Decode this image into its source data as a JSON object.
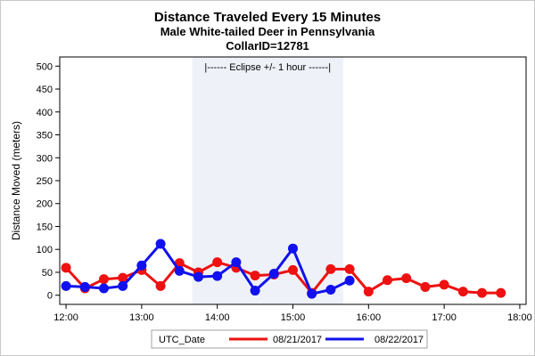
{
  "chart_data": {
    "type": "line",
    "title": "Distance Traveled Every 15 Minutes",
    "subtitle": "Male White-tailed Deer in Pennsylvania",
    "subtitle2": "CollarID=12781",
    "xlabel": "",
    "ylabel": "Distance Moved (meters)",
    "xlim": [
      "11:55",
      "18:05"
    ],
    "ylim": [
      -20,
      520
    ],
    "x_ticks": [
      "12:00",
      "13:00",
      "14:00",
      "15:00",
      "16:00",
      "17:00",
      "18:00"
    ],
    "y_ticks": [
      0,
      50,
      100,
      150,
      200,
      250,
      300,
      350,
      400,
      450,
      500
    ],
    "grid": false,
    "legend": {
      "title": "UTC_Date",
      "placement": "bottom"
    },
    "band": {
      "x_start": "13:40",
      "x_end": "15:40",
      "label": "|------  Eclipse +/- 1 hour  ------|",
      "color": "#eef2f8"
    },
    "series": [
      {
        "name": "08/21/2017",
        "color": "#ee1111",
        "x": [
          "12:00",
          "12:15",
          "12:30",
          "12:45",
          "13:00",
          "13:15",
          "13:30",
          "13:45",
          "14:00",
          "14:15",
          "14:30",
          "14:45",
          "15:00",
          "15:15",
          "15:30",
          "15:45",
          "16:00",
          "16:15",
          "16:30",
          "16:45",
          "17:00",
          "17:15",
          "17:30",
          "17:45"
        ],
        "values": [
          60,
          15,
          35,
          38,
          55,
          20,
          70,
          50,
          72,
          60,
          43,
          45,
          55,
          5,
          57,
          57,
          8,
          33,
          37,
          18,
          23,
          8,
          5,
          5
        ]
      },
      {
        "name": "08/22/2017",
        "color": "#1111ee",
        "x": [
          "12:00",
          "12:15",
          "12:30",
          "12:45",
          "13:00",
          "13:15",
          "13:30",
          "13:45",
          "14:00",
          "14:15",
          "14:30",
          "14:45",
          "15:00",
          "15:15",
          "15:30",
          "15:45"
        ],
        "values": [
          20,
          18,
          15,
          20,
          65,
          112,
          53,
          40,
          42,
          72,
          10,
          47,
          102,
          3,
          12,
          32
        ]
      }
    ]
  }
}
